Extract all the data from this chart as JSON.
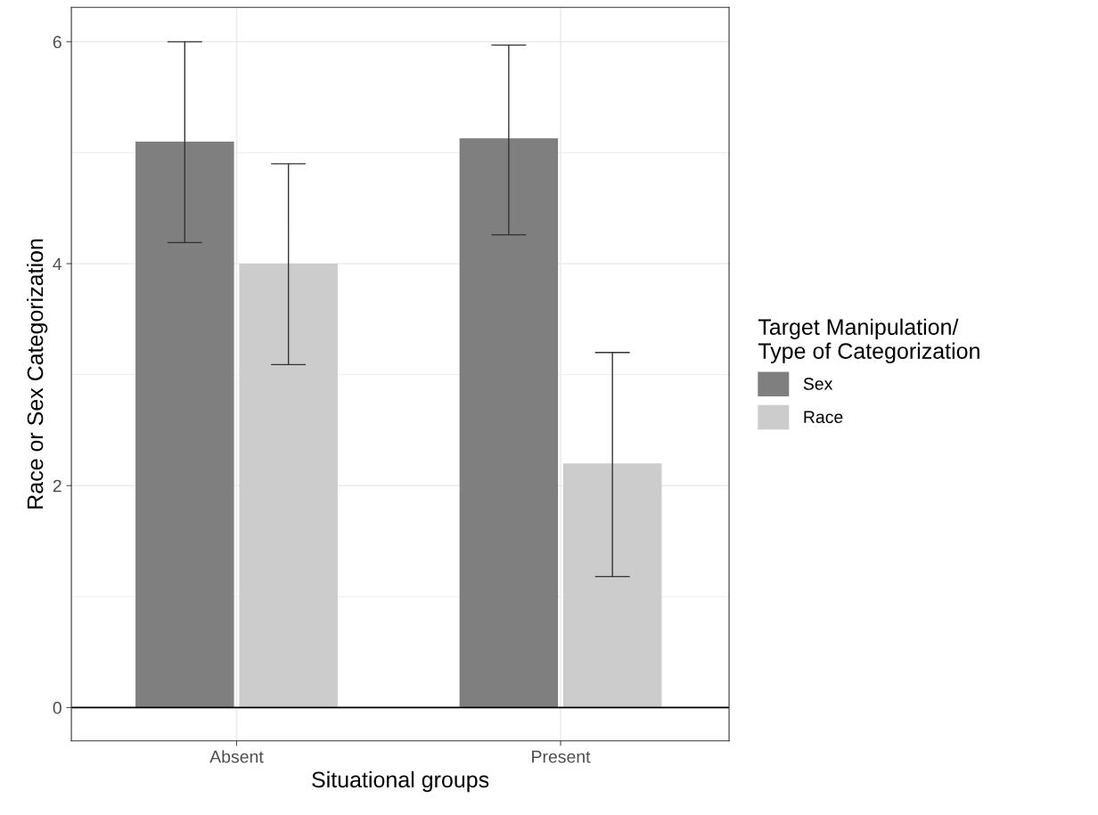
{
  "chart_data": {
    "type": "bar",
    "xlabel": "Situational groups",
    "ylabel": "Race or Sex Categorization",
    "legend_title": "Target Manipulation/\nType of Categorization",
    "categories": [
      "Absent",
      "Present"
    ],
    "series": [
      {
        "name": "Sex",
        "color": "#7f7f7f",
        "values": [
          5.1,
          5.13
        ],
        "errors": [
          [
            4.19,
            6.0
          ],
          [
            4.26,
            5.97
          ]
        ]
      },
      {
        "name": "Race",
        "color": "#cccccc",
        "values": [
          4.0,
          2.2
        ],
        "errors": [
          [
            3.09,
            4.9
          ],
          [
            1.18,
            3.2
          ]
        ]
      }
    ],
    "ylim": [
      -0.3,
      6.31
    ],
    "yticks": [
      0,
      2,
      4,
      6
    ],
    "ref_lines": [
      {
        "axis": "y",
        "value": 0,
        "color": "#000000"
      }
    ],
    "grid": true,
    "legend": "right"
  }
}
